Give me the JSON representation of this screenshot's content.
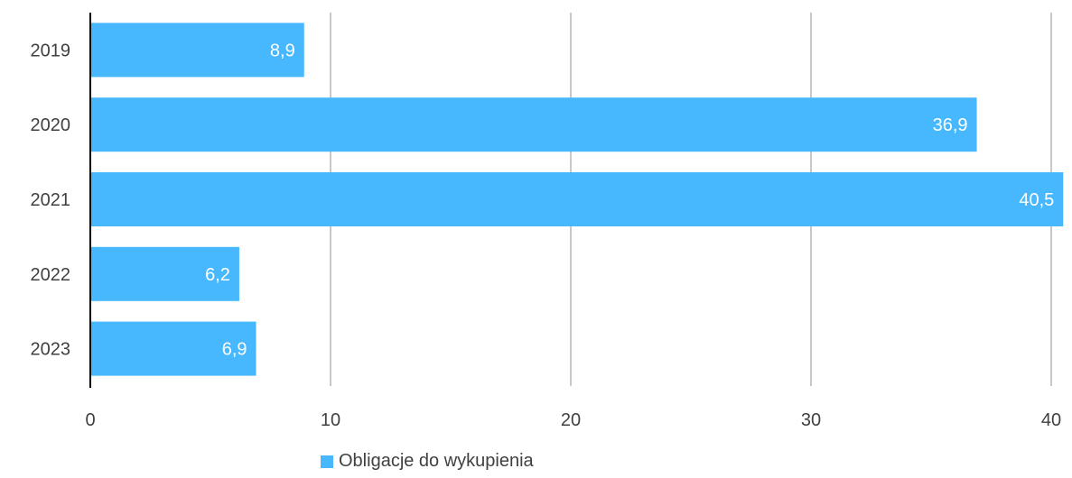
{
  "chart_data": {
    "type": "bar",
    "orientation": "horizontal",
    "categories": [
      "2019",
      "2020",
      "2021",
      "2022",
      "2023"
    ],
    "series": [
      {
        "name": "Obligacje do wykupienia",
        "values": [
          8.9,
          36.9,
          40.5,
          6.2,
          6.9
        ],
        "data_labels": [
          "8,9",
          "36,9",
          "40,5",
          "6,2",
          "6,9"
        ],
        "color": "#47b8fd"
      }
    ],
    "x_ticks": [
      "0",
      "10",
      "20",
      "30",
      "40"
    ],
    "xlim": [
      0,
      40.6
    ],
    "grid": true,
    "legend_position": "bottom"
  },
  "colors": {
    "bar": "#47b8fd",
    "grid": "#c8c8c8",
    "axis": "#000000",
    "tick_text": "#404040",
    "data_label": "#ffffff"
  }
}
